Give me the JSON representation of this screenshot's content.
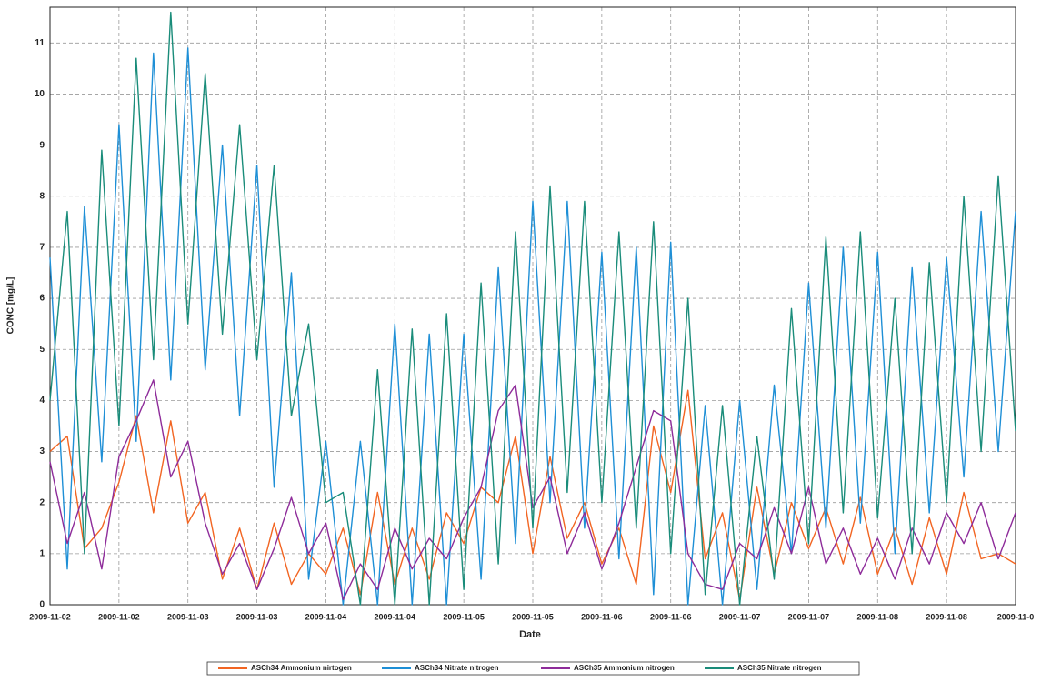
{
  "chart_data": {
    "type": "line",
    "xlabel": "Date",
    "ylabel": "CONC [mg/L]",
    "x": [
      0,
      0.125,
      0.25,
      0.375,
      0.5,
      0.625,
      0.75,
      0.875,
      1,
      1.125,
      1.25,
      1.375,
      1.5,
      1.625,
      1.75,
      1.875,
      2,
      2.125,
      2.25,
      2.375,
      2.5,
      2.625,
      2.75,
      2.875,
      3,
      3.125,
      3.25,
      3.375,
      3.5,
      3.625,
      3.75,
      3.875,
      4,
      4.125,
      4.25,
      4.375,
      4.5,
      4.625,
      4.75,
      4.875,
      5,
      5.125,
      5.25,
      5.375,
      5.5,
      5.625,
      5.75,
      5.875,
      6,
      6.125,
      6.25,
      6.375,
      6.5,
      6.625,
      6.75,
      6.875,
      7
    ],
    "series": [
      {
        "name": "ASCh34 Ammonium nirtogen",
        "color": "#f26522",
        "values": [
          3.0,
          3.3,
          1.1,
          1.5,
          2.4,
          3.7,
          1.8,
          3.6,
          1.6,
          2.2,
          0.5,
          1.5,
          0.3,
          1.6,
          0.4,
          1.0,
          0.6,
          1.5,
          0.2,
          2.2,
          0.4,
          1.5,
          0.5,
          1.8,
          1.2,
          2.3,
          2.0,
          3.3,
          1.0,
          2.9,
          1.3,
          2.0,
          0.8,
          1.5,
          0.4,
          3.5,
          2.2,
          4.2,
          0.9,
          1.8,
          0.1,
          2.3,
          0.6,
          2.0,
          1.1,
          1.9,
          0.8,
          2.1,
          0.6,
          1.5,
          0.4,
          1.7,
          0.6,
          2.2,
          0.9,
          1.0,
          0.8
        ]
      },
      {
        "name": "ASCh34 Nitrate nitrogen",
        "color": "#1e8fd6",
        "values": [
          6.8,
          0.7,
          7.8,
          2.8,
          9.4,
          3.2,
          10.8,
          4.4,
          10.9,
          4.6,
          9.0,
          3.7,
          8.6,
          2.3,
          6.5,
          0.5,
          3.2,
          0,
          3.2,
          0,
          5.5,
          0,
          5.3,
          0,
          5.3,
          0.5,
          6.6,
          1.2,
          7.9,
          2.0,
          7.9,
          1.5,
          6.9,
          0.9,
          7.0,
          0.2,
          7.1,
          0,
          3.9,
          0,
          4.0,
          0.3,
          4.3,
          1.0,
          6.3,
          1.5,
          7.0,
          1.6,
          6.9,
          1.0,
          6.6,
          1.8,
          6.8,
          2.5,
          7.7,
          3.0,
          7.7
        ]
      },
      {
        "name": "ASCh35 Ammonium nitrogen",
        "color": "#8e2c9a",
        "values": [
          2.8,
          1.2,
          2.2,
          0.7,
          2.9,
          3.6,
          4.4,
          2.5,
          3.2,
          1.6,
          0.6,
          1.2,
          0.3,
          1.1,
          2.1,
          1.0,
          1.6,
          0.1,
          0.8,
          0.3,
          1.5,
          0.7,
          1.3,
          0.9,
          1.7,
          2.3,
          3.8,
          4.3,
          1.9,
          2.5,
          1.0,
          1.8,
          0.7,
          1.6,
          2.7,
          3.8,
          3.6,
          1.0,
          0.4,
          0.3,
          1.2,
          0.9,
          1.9,
          1.0,
          2.3,
          0.8,
          1.5,
          0.6,
          1.3,
          0.5,
          1.5,
          0.8,
          1.8,
          1.2,
          2.0,
          0.9,
          1.8
        ]
      },
      {
        "name": "ASCh35 Nitrate nitrogen",
        "color": "#1a8c7a",
        "values": [
          4.0,
          7.7,
          1.0,
          8.9,
          3.5,
          10.7,
          4.8,
          11.6,
          5.5,
          10.4,
          5.3,
          9.4,
          4.8,
          8.6,
          3.7,
          5.5,
          2.0,
          2.2,
          0,
          4.6,
          0,
          5.4,
          0,
          5.7,
          0.3,
          6.3,
          0.8,
          7.3,
          1.5,
          8.2,
          2.2,
          7.9,
          2.0,
          7.3,
          1.5,
          7.5,
          1.0,
          6.0,
          0.2,
          3.9,
          0,
          3.3,
          0.5,
          5.8,
          1.2,
          7.2,
          1.8,
          7.3,
          1.7,
          6.0,
          1.0,
          6.7,
          2.0,
          8.0,
          3.0,
          8.4,
          3.4
        ]
      }
    ],
    "xlim": [
      0,
      7
    ],
    "xticks": [
      {
        "value": 0,
        "label": "2009-11-02"
      },
      {
        "value": 0.5,
        "label": "2009-11-02"
      },
      {
        "value": 1,
        "label": "2009-11-03"
      },
      {
        "value": 1.5,
        "label": "2009-11-03"
      },
      {
        "value": 2,
        "label": "2009-11-04"
      },
      {
        "value": 2.5,
        "label": "2009-11-04"
      },
      {
        "value": 3,
        "label": "2009-11-05"
      },
      {
        "value": 3.5,
        "label": "2009-11-05"
      },
      {
        "value": 4,
        "label": "2009-11-06"
      },
      {
        "value": 4.5,
        "label": "2009-11-06"
      },
      {
        "value": 5,
        "label": "2009-11-07"
      },
      {
        "value": 5.5,
        "label": "2009-11-07"
      },
      {
        "value": 6,
        "label": "2009-11-08"
      },
      {
        "value": 6.5,
        "label": "2009-11-08"
      },
      {
        "value": 7,
        "label": "2009-11-0"
      }
    ],
    "ylim": [
      0,
      11.7
    ],
    "yticks": [
      0,
      1,
      2,
      3,
      4,
      5,
      6,
      7,
      8,
      9,
      10,
      11
    ],
    "grid": true
  }
}
